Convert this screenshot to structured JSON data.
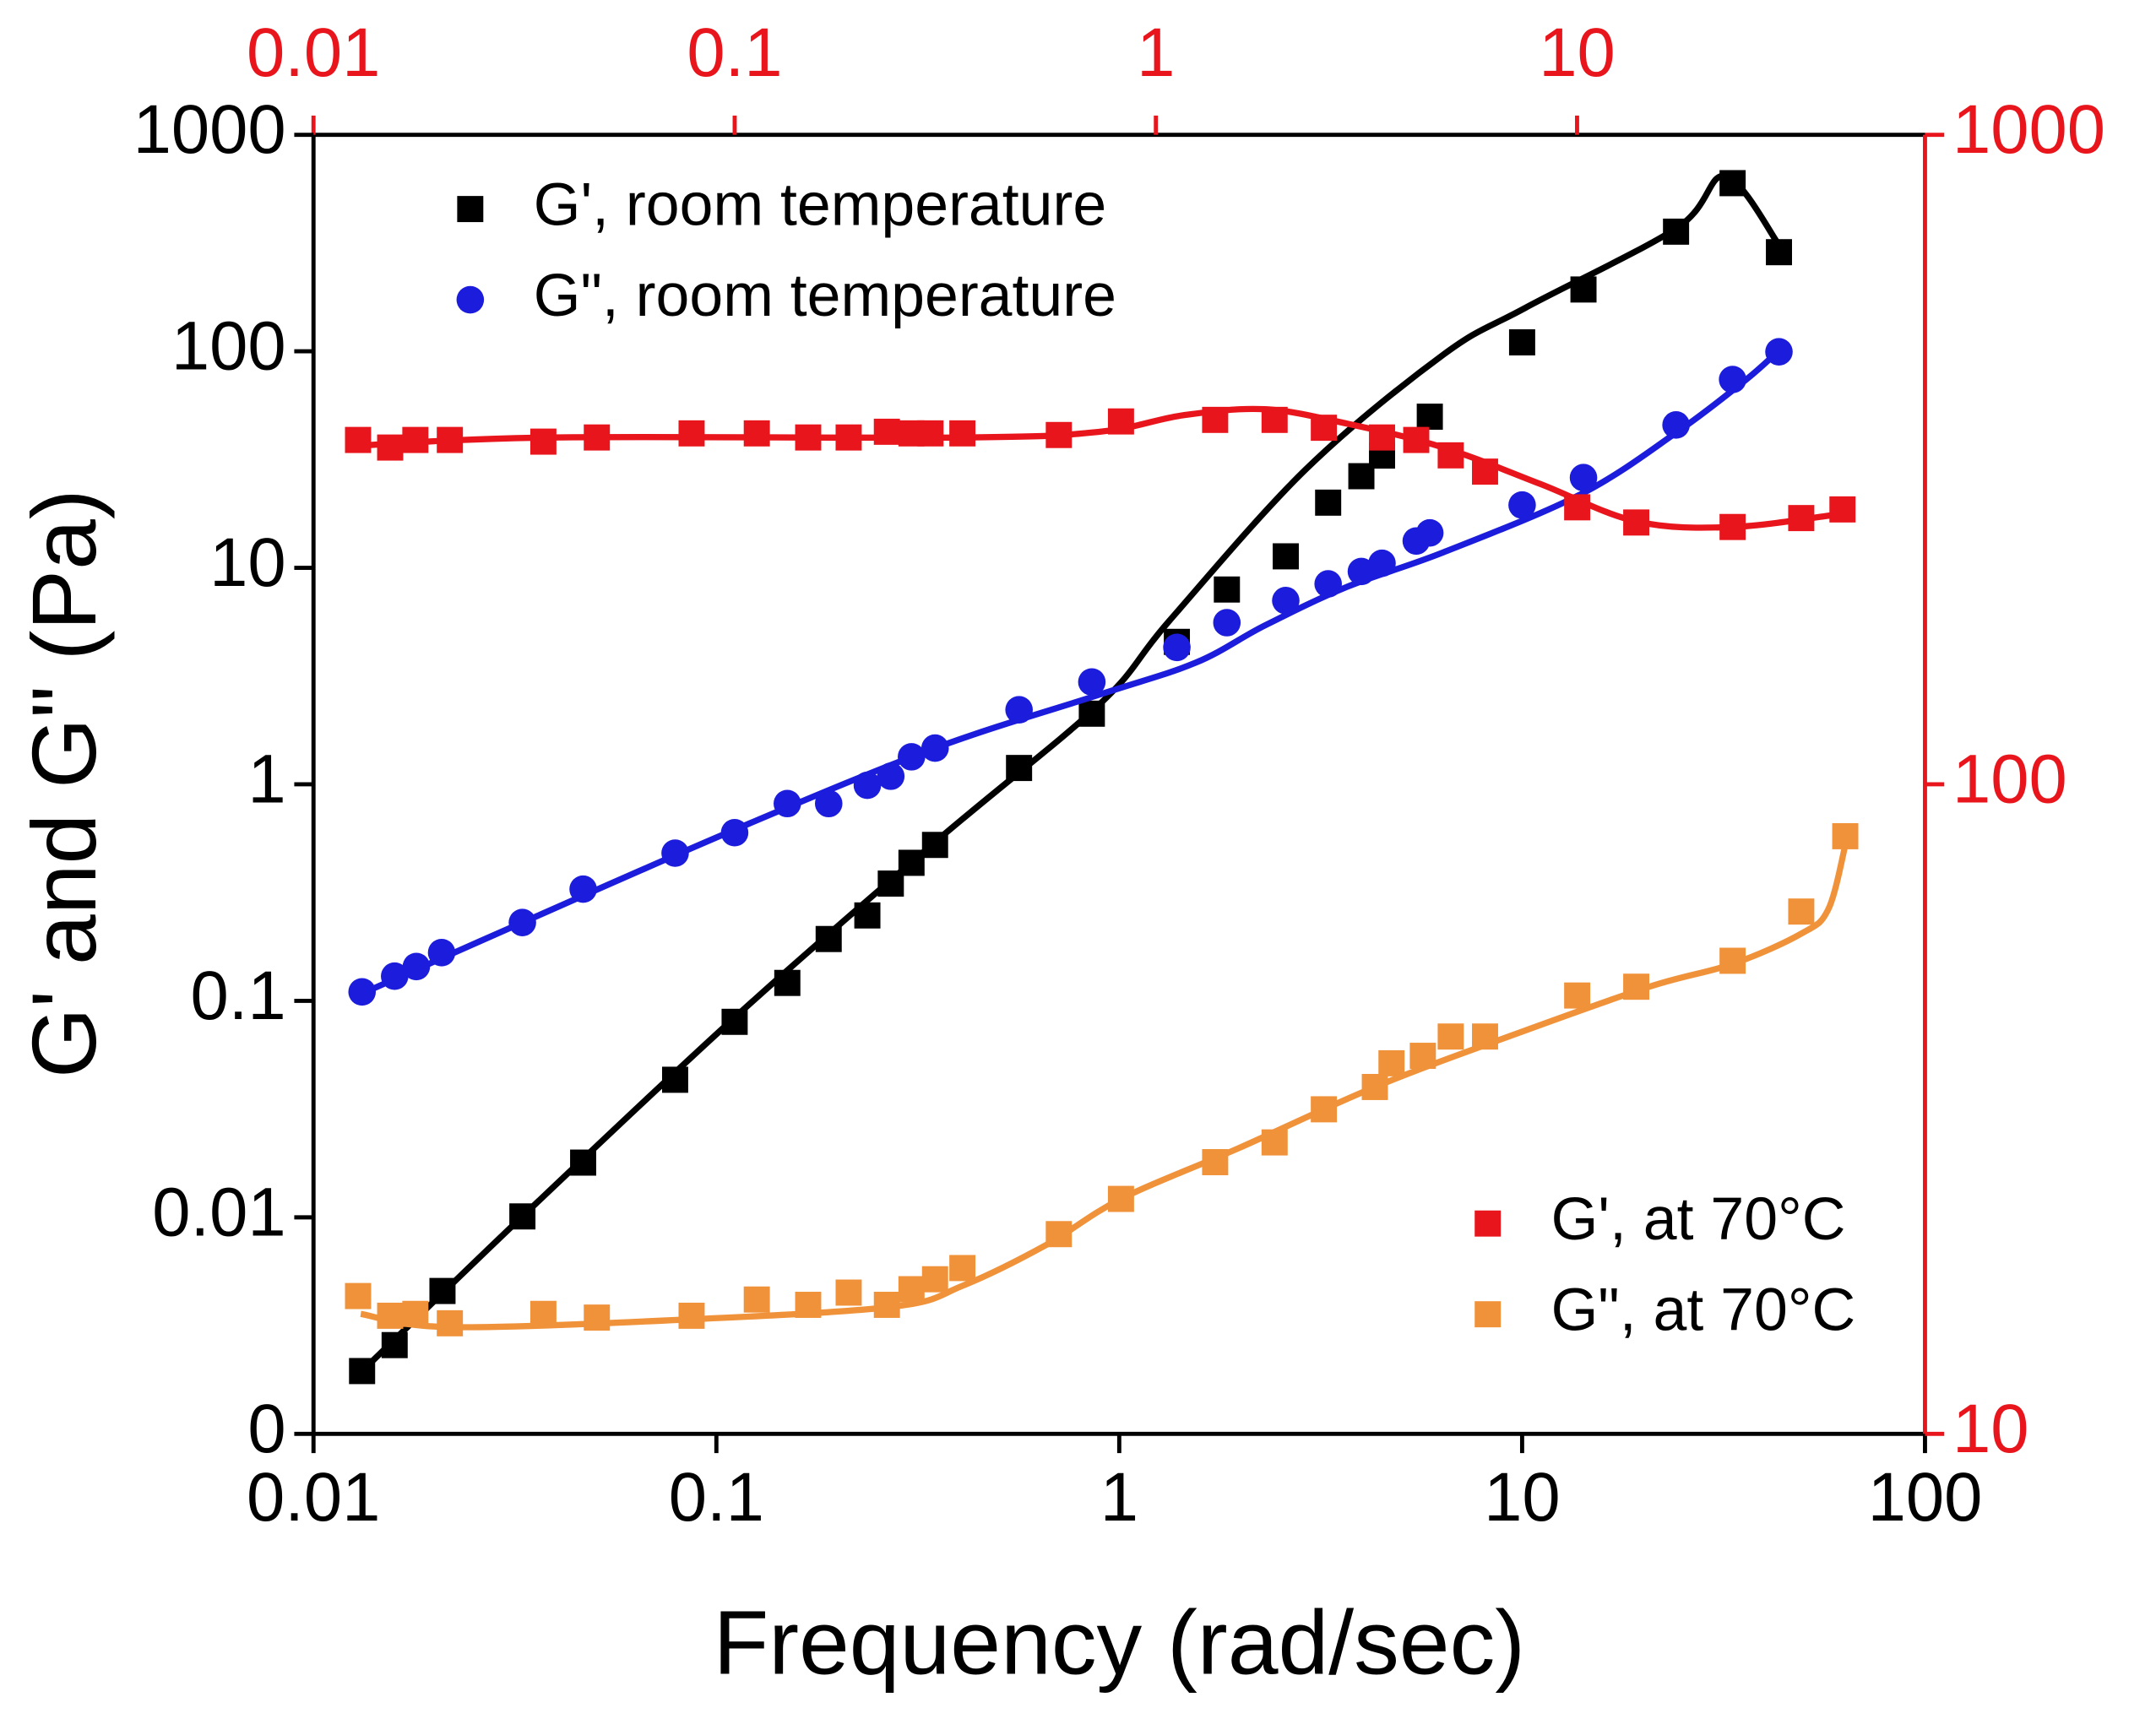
{
  "chart_data": {
    "type": "scatter",
    "xlabel": "Frequency (rad/sec)",
    "ylabel": "G' and G\" (Pa)",
    "xscale": "log",
    "yscale": "log",
    "x2scale": "log",
    "y2scale": "log",
    "xlim": [
      0.01,
      100
    ],
    "xticks": [
      0.01,
      0.1,
      1,
      10,
      100
    ],
    "x2lim": [
      0.01,
      67
    ],
    "x2ticks": [
      0.01,
      0.1,
      1,
      10
    ],
    "x2color": "#e8161c",
    "ylim": [
      0.001,
      1000
    ],
    "yticks": [
      {
        "value": 0.001,
        "label": "0"
      },
      0.01,
      0.1,
      1,
      10,
      100,
      1000
    ],
    "y2lim": [
      10,
      1000
    ],
    "y2ticks": [
      10,
      100,
      1000
    ],
    "y2color": "#e8161c",
    "series": [
      {
        "name": "G', room temperature",
        "color": "#000000",
        "marker": "square",
        "legend": "upper left",
        "x": [
          0.0132,
          0.0159,
          0.0209,
          0.033,
          0.0467,
          0.079,
          0.111,
          0.15,
          0.19,
          0.237,
          0.271,
          0.305,
          0.349,
          0.564,
          0.855,
          1.39,
          1.85,
          2.59,
          3.3,
          3.99,
          4.49,
          5.9,
          10.0,
          14.2,
          24.1,
          33.3,
          43.4
        ],
        "values": [
          0.00195,
          0.00257,
          0.00457,
          0.0101,
          0.0179,
          0.0432,
          0.08,
          0.121,
          0.193,
          0.248,
          0.348,
          0.434,
          0.525,
          1.19,
          2.12,
          4.55,
          7.94,
          11.3,
          20.0,
          26.5,
          33.0,
          49.9,
          110,
          193,
          357,
          598,
          287
        ],
        "fit": {
          "x": [
            0.0132,
            0.033,
            0.111,
            0.349,
            0.895,
            1.33,
            2.91,
            6.38,
            10.2,
            24.3,
            32.0,
            43.9
          ],
          "values": [
            0.00195,
            0.0101,
            0.0837,
            0.541,
            2.35,
            5.68,
            28.6,
            96.6,
            159,
            373,
            644,
            300
          ]
        }
      },
      {
        "name": "G\", room temperature",
        "color": "#1c1cdc",
        "marker": "circle",
        "legend": "upper left",
        "x": [
          0.0132,
          0.0159,
          0.018,
          0.0208,
          0.033,
          0.0467,
          0.079,
          0.111,
          0.15,
          0.19,
          0.237,
          0.271,
          0.305,
          0.349,
          0.564,
          0.855,
          1.39,
          1.85,
          2.59,
          3.3,
          3.99,
          4.49,
          5.46,
          5.9,
          10.0,
          14.2,
          24.1,
          33.3,
          43.4
        ],
        "values": [
          0.11,
          0.13,
          0.144,
          0.167,
          0.23,
          0.328,
          0.481,
          0.598,
          0.815,
          0.815,
          0.99,
          1.09,
          1.34,
          1.47,
          2.21,
          2.97,
          4.29,
          5.58,
          7.06,
          8.43,
          9.62,
          10.5,
          13.3,
          14.5,
          19.5,
          26.1,
          45.7,
          74.1,
          99.5
        ],
        "fit": {
          "x": [
            0.0126,
            0.033,
            0.111,
            0.349,
            0.895,
            1.55,
            2.3,
            3.69,
            6.38,
            14.0,
            24.3,
            36.0,
            43.9
          ],
          "values": [
            0.104,
            0.23,
            0.617,
            1.47,
            2.6,
            3.65,
            5.42,
            8.19,
            11.8,
            21.9,
            42.5,
            74.1,
            103
          ]
        }
      },
      {
        "name": "G', at 70°C",
        "color": "#e8161c",
        "marker": "square",
        "legend": "lower right",
        "axis": "y2",
        "x": [
          0.0129,
          0.0155,
          0.0179,
          0.0218,
          0.0372,
          0.0505,
          0.0868,
          0.126,
          0.169,
          0.213,
          0.265,
          0.305,
          0.34,
          0.408,
          0.708,
          1.01,
          1.73,
          2.43,
          3.22,
          4.49,
          5.46,
          6.65,
          8.09,
          13.7,
          19.2,
          33.3,
          49.3,
          62.4
        ],
        "values": [
          339,
          330,
          339,
          339,
          337,
          342,
          347,
          347,
          342,
          342,
          349,
          347,
          347,
          347,
          345,
          362,
          364,
          364,
          354,
          342,
          339,
          321,
          303,
          267,
          253,
          249,
          257,
          265
        ],
        "fit": {
          "x": [
            0.0126,
            0.0387,
            0.408,
            0.895,
            1.44,
            2.3,
            3.69,
            6.38,
            11.1,
            19.2,
            33.3,
            62.4
          ],
          "values": [
            332,
            342,
            342,
            349,
            370,
            378,
            359,
            330,
            290,
            254,
            249,
            261
          ]
        }
      },
      {
        "name": "G\", at 70°C",
        "color": "#f0923a",
        "marker": "square",
        "legend": "lower right",
        "axis": "y2",
        "x": [
          0.0129,
          0.0155,
          0.0179,
          0.0218,
          0.0372,
          0.0505,
          0.0868,
          0.126,
          0.169,
          0.213,
          0.265,
          0.305,
          0.349,
          0.408,
          0.708,
          1.01,
          1.73,
          2.43,
          3.22,
          4.31,
          4.74,
          5.67,
          6.65,
          8.09,
          13.7,
          19.2,
          33.3,
          49.3,
          63.4
        ],
        "values": [
          16.3,
          15.2,
          15.3,
          14.8,
          15.3,
          15.1,
          15.2,
          16.1,
          15.8,
          16.5,
          15.8,
          16.7,
          17.3,
          18.0,
          20.3,
          23.0,
          26.2,
          28.1,
          31.6,
          34.2,
          37.2,
          38.2,
          40.9,
          40.9,
          47.3,
          48.8,
          53.5,
          63.7,
          83.2
        ],
        "fit": {
          "x": [
            0.0131,
            0.0218,
            0.0847,
            0.275,
            0.408,
            0.655,
            1.01,
            1.97,
            4.31,
            9.46,
            20.7,
            33.3,
            49.3,
            57.6,
            63.8
          ],
          "values": [
            15.3,
            14.6,
            15.0,
            15.7,
            16.9,
            19.5,
            23.0,
            27.5,
            34.2,
            41.1,
            48.8,
            52.9,
            58.9,
            64.3,
            82.0
          ]
        }
      }
    ]
  }
}
